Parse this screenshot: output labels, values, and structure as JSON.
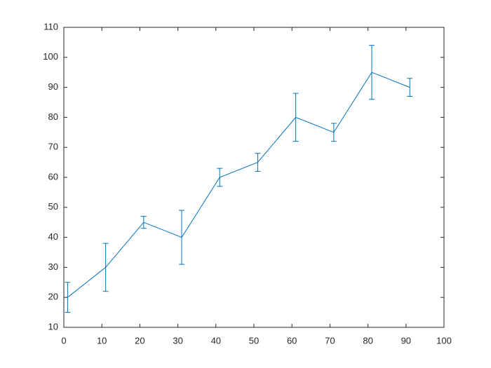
{
  "chart_data": {
    "type": "errorbar",
    "x": [
      1,
      11,
      21,
      31,
      41,
      51,
      61,
      71,
      81,
      91
    ],
    "values": [
      20,
      30,
      45,
      40,
      60,
      65,
      80,
      75,
      95,
      90
    ],
    "errors": [
      5,
      8,
      2,
      9,
      3,
      3,
      8,
      3,
      9,
      3
    ],
    "color": "#0072bd",
    "xlim": [
      0,
      100
    ],
    "xticks": [
      0,
      10,
      20,
      30,
      40,
      50,
      60,
      70,
      80,
      90,
      100
    ],
    "ylim": [
      10,
      110
    ],
    "yticks": [
      10,
      20,
      30,
      40,
      50,
      60,
      70,
      80,
      90,
      100,
      110
    ]
  }
}
